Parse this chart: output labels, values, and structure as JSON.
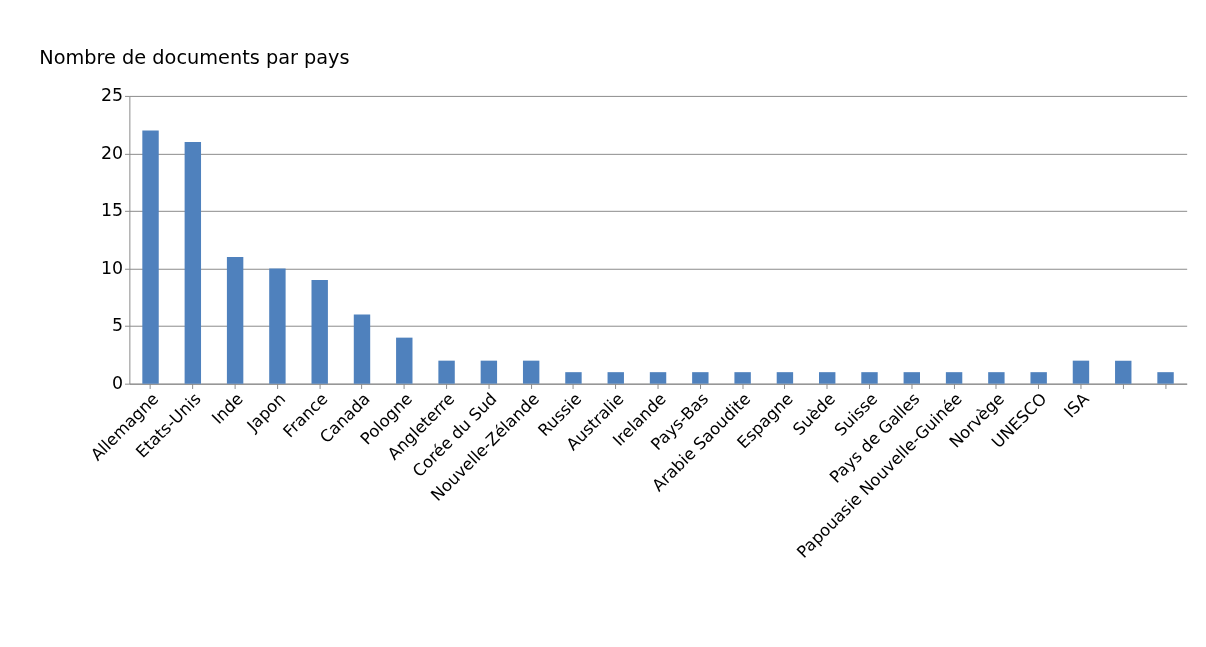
{
  "chart_data": {
    "type": "bar",
    "title": "Nombre de documents par pays",
    "categories": [
      "Allemagne",
      "Etats-Unis",
      "Inde",
      "Japon",
      "France",
      "Canada",
      "Pologne",
      "Angleterre",
      "Corée du Sud",
      "Nouvelle-Zélande",
      "Russie",
      "Australie",
      "Irelande",
      "Pays-Bas",
      "Arabie Saoudite",
      "Espagne",
      "Suède",
      "Suisse",
      "Pays de Galles",
      "Papouasie Nouvelle-Guinée",
      "Norvège",
      "UNESCO",
      "ISA",
      null,
      null
    ],
    "values": [
      22,
      21,
      11,
      10,
      9,
      6,
      4,
      2,
      2,
      2,
      1,
      1,
      1,
      1,
      1,
      1,
      1,
      1,
      1,
      1,
      1,
      1,
      2,
      2,
      1
    ],
    "color": "#4f81bd",
    "ylim": [
      0,
      25
    ],
    "yticks": [
      0,
      5,
      10,
      15,
      20,
      25
    ],
    "grid": "y"
  }
}
